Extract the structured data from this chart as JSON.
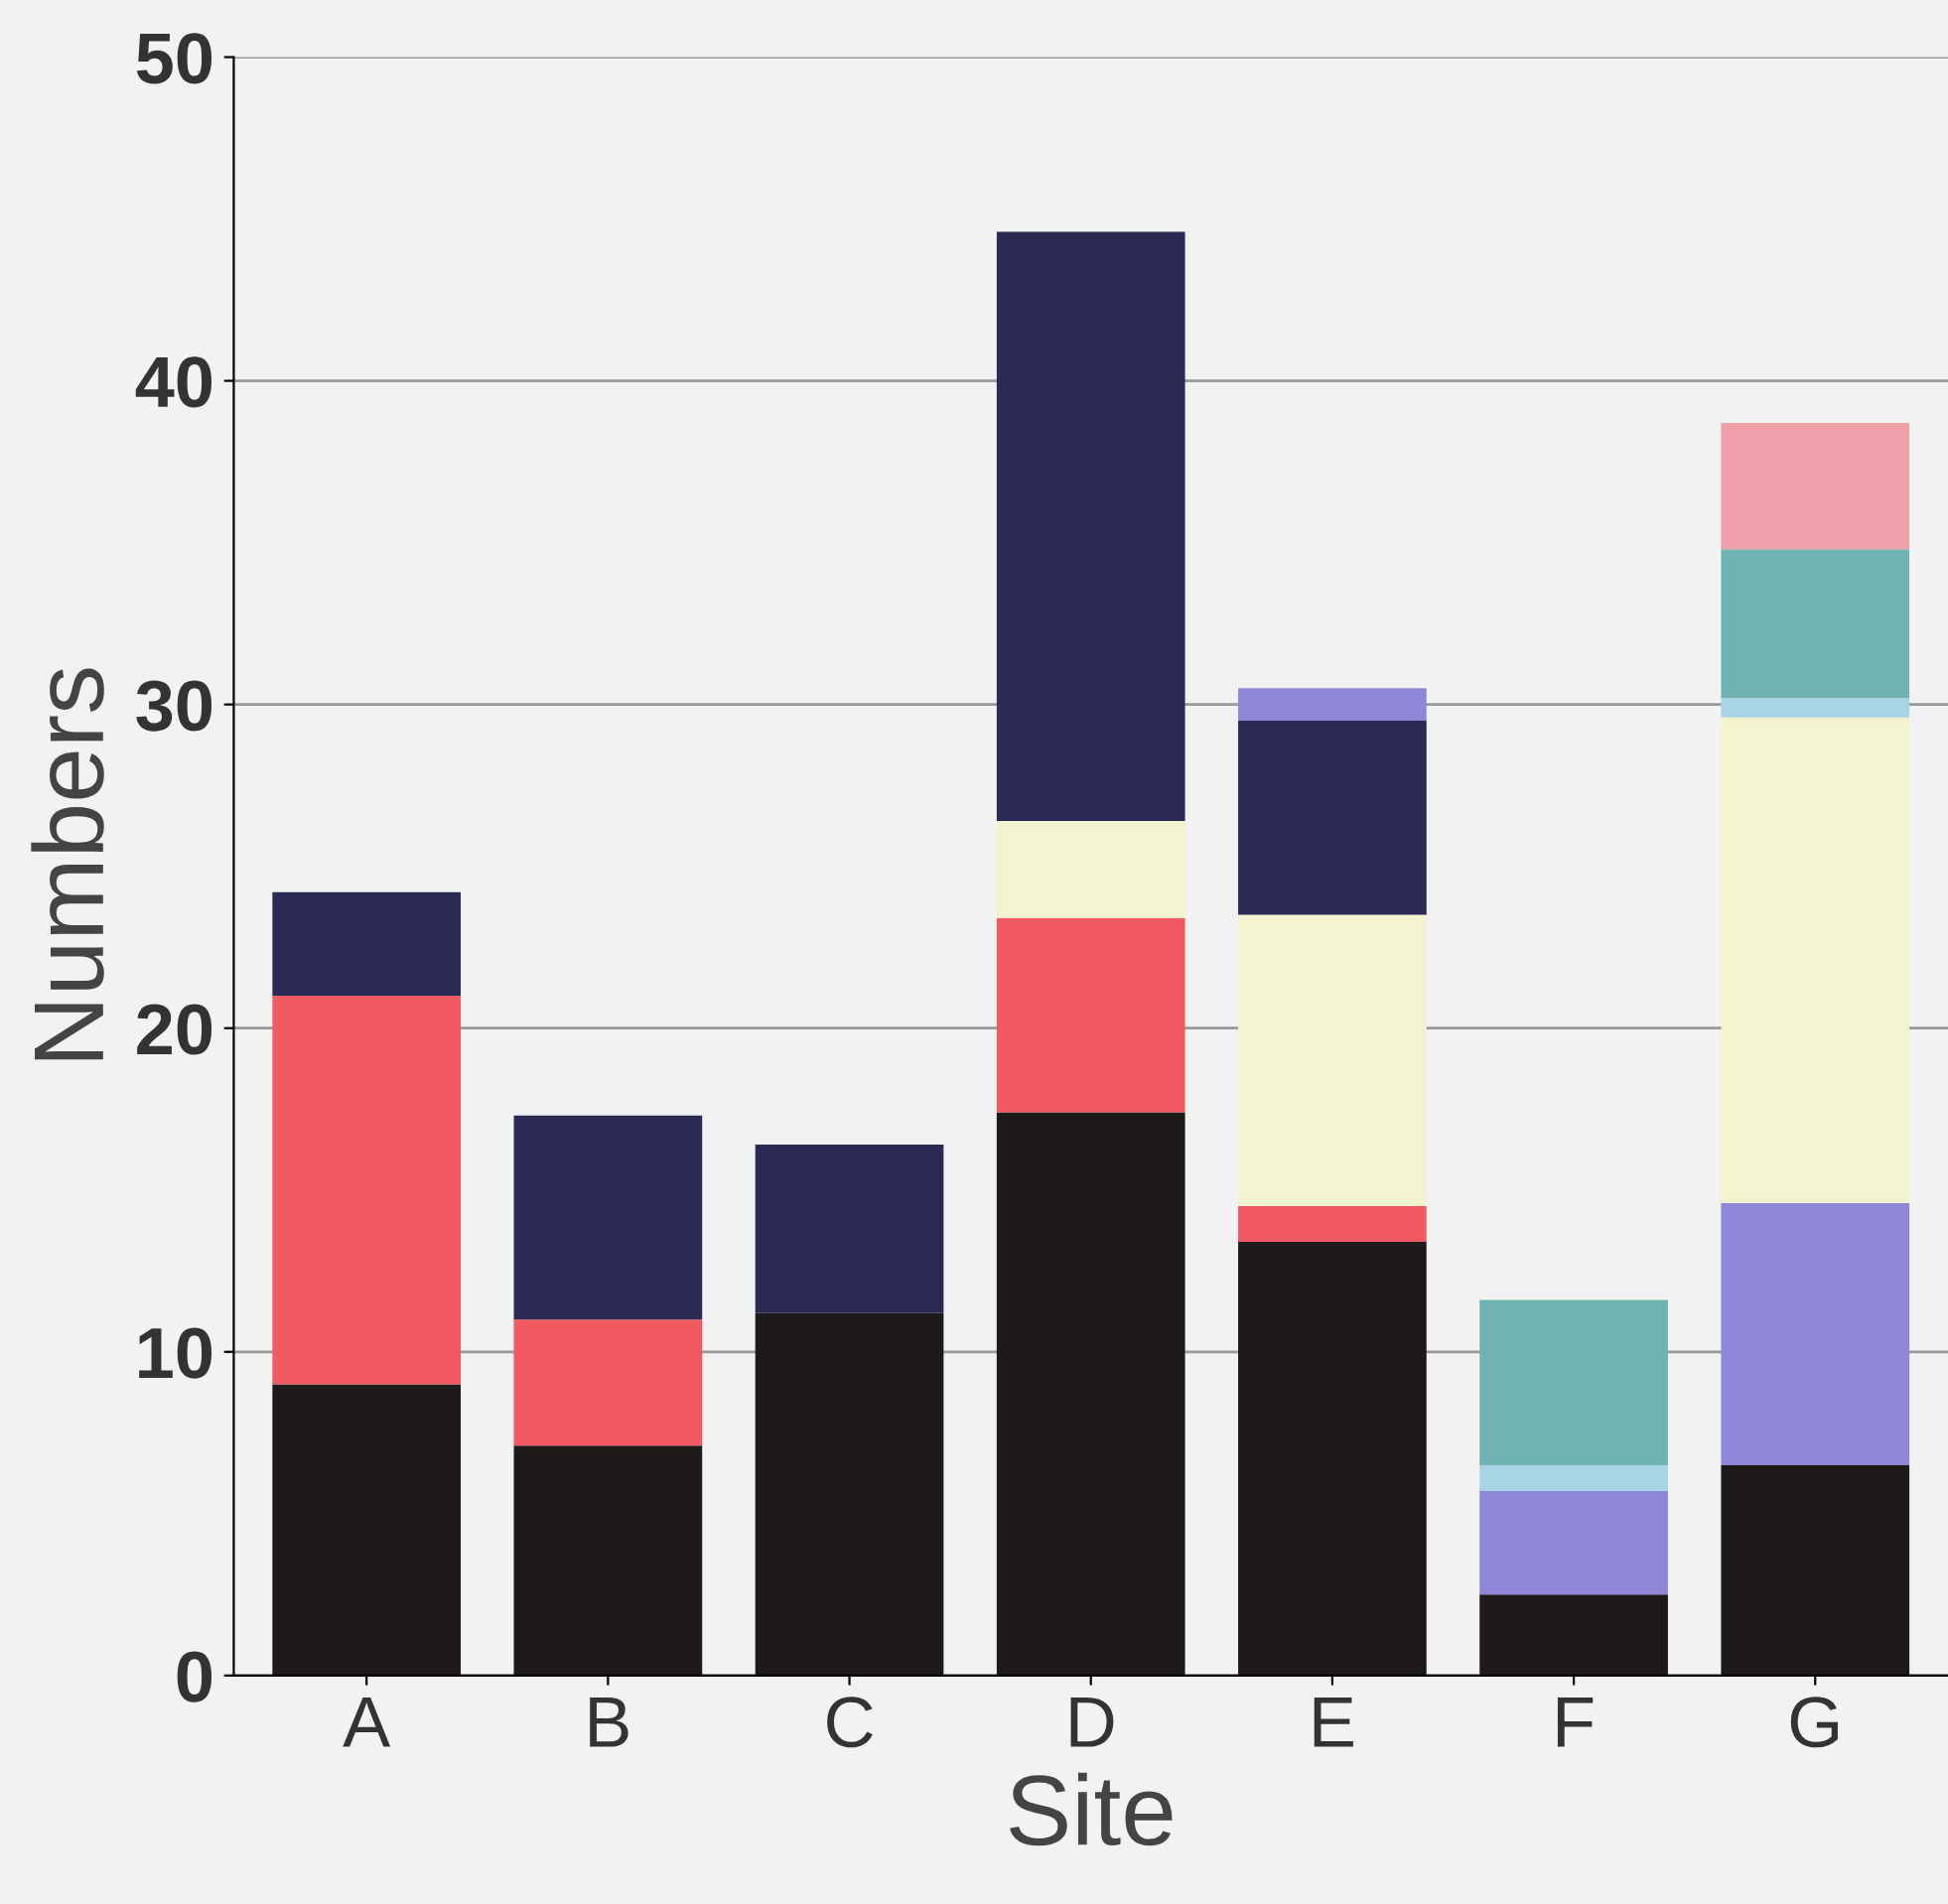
{
  "chart_data": {
    "type": "bar",
    "stacked": true,
    "xlabel": "Site",
    "ylabel": "Numbers",
    "categories": [
      "A",
      "B",
      "C",
      "D",
      "E",
      "F",
      "G"
    ],
    "series": [
      {
        "color": "#1e1a1a",
        "values": [
          9.0,
          7.1,
          11.2,
          17.4,
          13.4,
          2.5,
          6.5
        ]
      },
      {
        "color": "#8f86d8",
        "values": [
          0,
          0,
          0,
          0,
          0,
          3.2,
          8.1
        ]
      },
      {
        "color": "#f25a62",
        "values": [
          12.0,
          3.9,
          0,
          6.0,
          1.1,
          0,
          0
        ]
      },
      {
        "color": "#f3f3d0",
        "values": [
          0,
          0,
          0,
          3.0,
          9.0,
          0,
          15.0
        ]
      },
      {
        "color": "#2b2a55",
        "values": [
          3.2,
          6.3,
          5.2,
          18.2,
          6.0,
          0,
          0
        ]
      },
      {
        "color": "#8f86d8",
        "values": [
          0,
          0,
          0,
          0,
          1.0,
          0,
          0
        ]
      },
      {
        "color": "#a9d4e6",
        "values": [
          0,
          0,
          0,
          0,
          0,
          0.8,
          0.6
        ]
      },
      {
        "color": "#6fb3b3",
        "values": [
          0,
          0,
          0,
          0,
          0,
          5.1,
          4.6
        ]
      },
      {
        "color": "#f0a0a8",
        "values": [
          0,
          0,
          0,
          0,
          0,
          0,
          3.9
        ]
      }
    ],
    "ylim": [
      0,
      50
    ],
    "yticks": [
      0,
      10,
      20,
      30,
      40,
      50
    ],
    "grid": "y"
  }
}
